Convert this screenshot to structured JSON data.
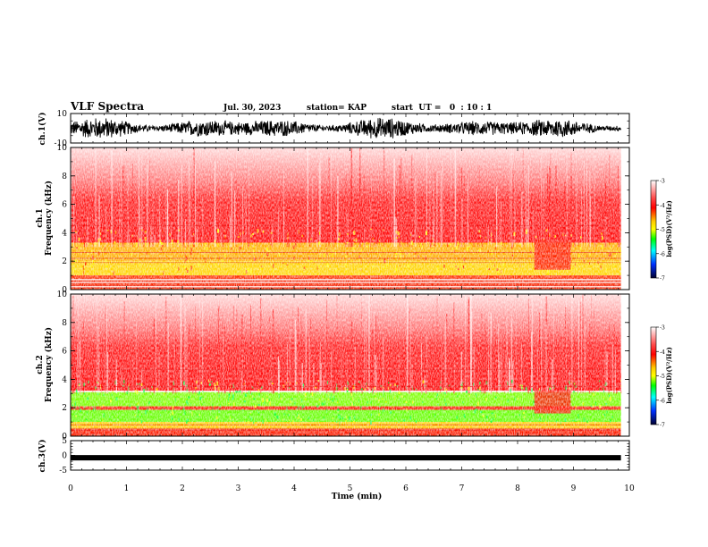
{
  "header": {
    "title": "VLF Spectra",
    "date": "Jul. 30, 2023",
    "station": "station= KAP",
    "start_ut": "start  UT =   0  : 10 : 1"
  },
  "chart_data": [
    {
      "type": "line",
      "panel": "ch1-waveform",
      "ylabel": "ch.1(V)",
      "ylim": [
        -10,
        10
      ],
      "yticks": [
        "10",
        "-10"
      ],
      "xlim": [
        0,
        10
      ]
    },
    {
      "type": "heatmap",
      "panel": "ch1-spectrogram",
      "ylabel_line1": "ch.1",
      "ylabel_line2": "Frequency (kHz)",
      "ylim": [
        0,
        10
      ],
      "yticks": [
        "0",
        "2",
        "4",
        "6",
        "8",
        "10"
      ],
      "xlim": [
        0,
        10
      ],
      "colorbar": {
        "label": "log(PSD)(V²/Hz)",
        "range": [
          -7,
          -3
        ],
        "ticks": [
          "-3",
          "-4",
          "-5",
          "-6",
          "-7"
        ]
      }
    },
    {
      "type": "heatmap",
      "panel": "ch2-spectrogram",
      "ylabel_line1": "ch.2",
      "ylabel_line2": "Frequency (kHz)",
      "ylim": [
        0,
        10
      ],
      "yticks": [
        "0",
        "2",
        "4",
        "6",
        "8",
        "10"
      ],
      "xlim": [
        0,
        10
      ],
      "colorbar": {
        "label": "log(PSD)(V²/Hz)",
        "range": [
          -7,
          -3
        ],
        "ticks": [
          "-3",
          "-4",
          "-5",
          "-6",
          "-7"
        ]
      }
    },
    {
      "type": "line",
      "panel": "ch3-waveform",
      "ylabel": "ch.3(V)",
      "ylim": [
        -5,
        5
      ],
      "yticks": [
        "5",
        "0",
        "-5"
      ],
      "xlim": [
        0,
        10
      ],
      "xlabel": "Time (min)",
      "xticks": [
        "0",
        "1",
        "2",
        "3",
        "4",
        "5",
        "6",
        "7",
        "8",
        "9",
        "10"
      ]
    }
  ],
  "colors": {
    "trace": "#000000",
    "spectrum_high": "#ff0000",
    "spectrum_mid": "#ffff00",
    "spectrum_low": "#00ff00",
    "background": "#ffffff"
  }
}
